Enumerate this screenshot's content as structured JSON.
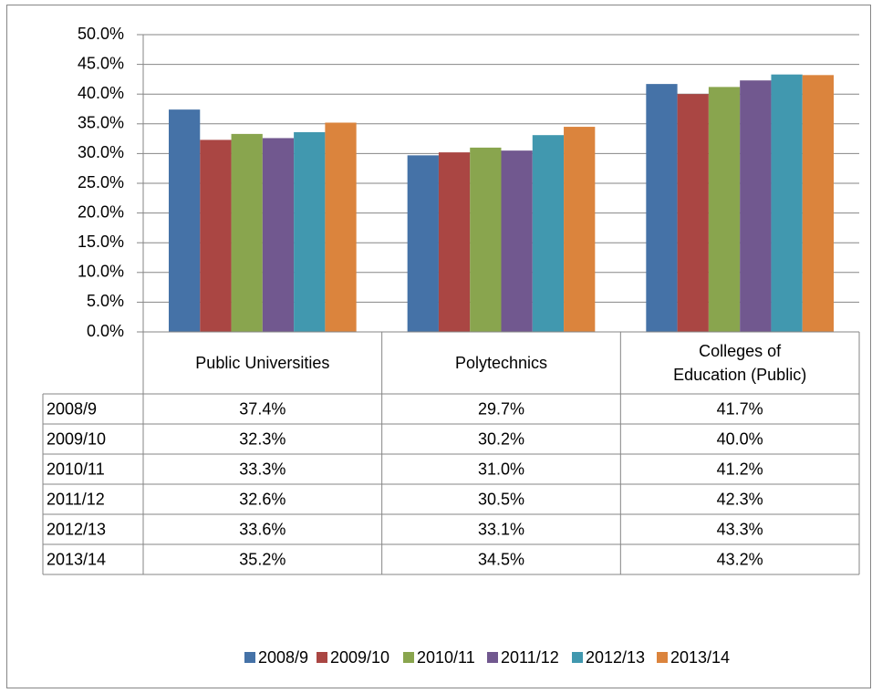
{
  "chart_data": {
    "type": "bar",
    "categories": [
      "Public Universities",
      "Polytechnics",
      "Colleges of Education (Public)"
    ],
    "series": [
      {
        "name": "2008/9",
        "color": "#4572a7",
        "values": [
          37.4,
          29.7,
          41.7
        ],
        "value_labels": [
          "37.4%",
          "29.7%",
          "41.7%"
        ]
      },
      {
        "name": "2009/10",
        "color": "#aa4643",
        "values": [
          32.3,
          30.2,
          40.0
        ],
        "value_labels": [
          "32.3%",
          "30.2%",
          "40.0%"
        ]
      },
      {
        "name": "2010/11",
        "color": "#89a54e",
        "values": [
          33.3,
          31.0,
          41.2
        ],
        "value_labels": [
          "33.3%",
          "31.0%",
          "41.2%"
        ]
      },
      {
        "name": "2011/12",
        "color": "#71588f",
        "values": [
          32.6,
          30.5,
          42.3
        ],
        "value_labels": [
          "32.6%",
          "30.5%",
          "42.3%"
        ]
      },
      {
        "name": "2012/13",
        "color": "#4198af",
        "values": [
          33.6,
          33.1,
          43.3
        ],
        "value_labels": [
          "33.6%",
          "33.1%",
          "43.3%"
        ]
      },
      {
        "name": "2013/14",
        "color": "#db843d",
        "values": [
          35.2,
          34.5,
          43.2
        ],
        "value_labels": [
          "35.2%",
          "34.5%",
          "43.2%"
        ]
      }
    ],
    "ylim": [
      0,
      50
    ],
    "yticks": [
      {
        "value": 0,
        "label": "0.0%"
      },
      {
        "value": 5,
        "label": "5.0%"
      },
      {
        "value": 10,
        "label": "10.0%"
      },
      {
        "value": 15,
        "label": "15.0%"
      },
      {
        "value": 20,
        "label": "20.0%"
      },
      {
        "value": 25,
        "label": "25.0%"
      },
      {
        "value": 30,
        "label": "30.0%"
      },
      {
        "value": 35,
        "label": "35.0%"
      },
      {
        "value": 40,
        "label": "40.0%"
      },
      {
        "value": 45,
        "label": "45.0%"
      },
      {
        "value": 50,
        "label": "50.0%"
      }
    ],
    "grid": true,
    "legend": "bottom",
    "data_table": true
  }
}
